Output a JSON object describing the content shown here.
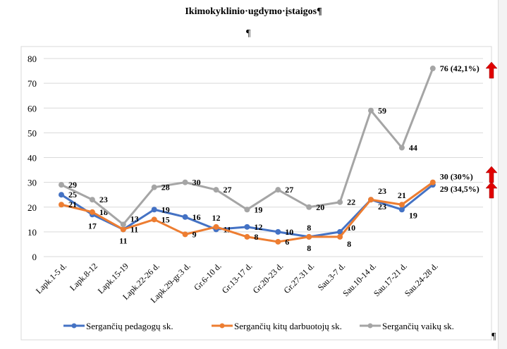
{
  "title": "Ikimokyklinio·ugdymo·įstaigos¶",
  "pilcrow": "¶",
  "chart_data": {
    "type": "line",
    "title": "",
    "categories": [
      "Lapk.1-5 d.",
      "Lapk.8-12",
      "Lapk.15-19",
      "Lapk.22-26 d.",
      "Lapk.29-gr.3 d.",
      "Gr.6-10 d.",
      "Gr.13-17 d.",
      "Gr.20-23 d.",
      "Gr.27-31 d.",
      "Sau.3-7 d.",
      "Sau.10-14 d.",
      "Sau.17-21 d.",
      "Sau.24-28 d."
    ],
    "ylim": [
      0,
      80
    ],
    "yticks": [
      0,
      10,
      20,
      30,
      40,
      50,
      60,
      70,
      80
    ],
    "grid": true,
    "legend": "bottom",
    "series": [
      {
        "name": "Sergančių pedagogų sk.",
        "color": "#4472c4",
        "values": [
          25,
          17,
          11,
          19,
          16,
          11,
          12,
          10,
          8,
          10,
          23,
          19,
          29
        ],
        "last_label": "29 (34,5%)"
      },
      {
        "name": "Sergančių kitų darbuotojų sk.",
        "color": "#ed7d31",
        "values": [
          21,
          18,
          11,
          15,
          9,
          12,
          8,
          6,
          8,
          8,
          23,
          21,
          30
        ],
        "last_label": "30 (30%)"
      },
      {
        "name": "Sergančių vaikų sk.",
        "color": "#a5a5a5",
        "values": [
          29,
          23,
          13,
          28,
          30,
          27,
          19,
          27,
          20,
          22,
          59,
          44,
          76
        ],
        "last_label": "76 (42,1%)"
      }
    ],
    "arrow_color": "#e00000"
  }
}
